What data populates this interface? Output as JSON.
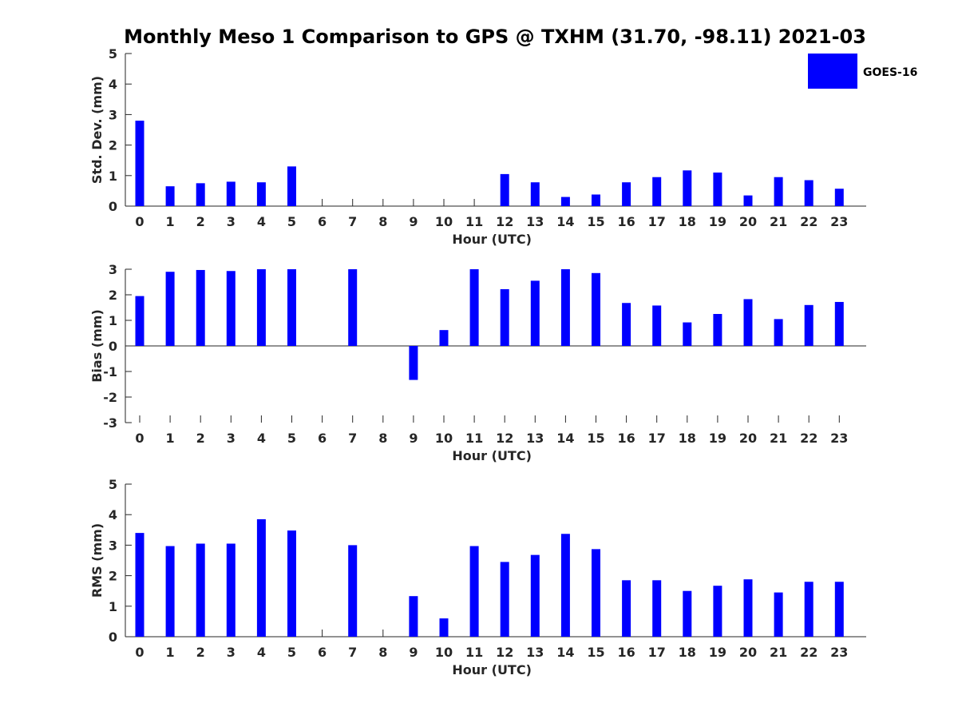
{
  "title": "Monthly Meso 1 Comparison to GPS @ TXHM (31.70, -98.11) 2021-03",
  "legend": {
    "label": "GOES-16",
    "color": "#0000ff",
    "position": "top-right"
  },
  "chart_data": [
    {
      "type": "bar",
      "xlabel": "Hour (UTC)",
      "ylabel": "Std. Dev. (mm)",
      "ylim": [
        0,
        5
      ],
      "yticks": [
        0,
        1,
        2,
        3,
        4,
        5
      ],
      "categories": [
        0,
        1,
        2,
        3,
        4,
        5,
        6,
        7,
        8,
        9,
        10,
        11,
        12,
        13,
        14,
        15,
        16,
        17,
        18,
        19,
        20,
        21,
        22,
        23
      ],
      "series": [
        {
          "name": "GOES-16",
          "values": [
            2.8,
            0.65,
            0.75,
            0.8,
            0.78,
            1.3,
            null,
            null,
            null,
            null,
            null,
            null,
            1.05,
            0.78,
            0.3,
            0.38,
            0.78,
            0.95,
            1.17,
            1.1,
            0.35,
            0.95,
            0.85,
            0.57
          ]
        }
      ]
    },
    {
      "type": "bar",
      "xlabel": "Hour (UTC)",
      "ylabel": "Bias (mm)",
      "ylim": [
        -3,
        3
      ],
      "yticks": [
        -3,
        -2,
        -1,
        0,
        1,
        2,
        3
      ],
      "categories": [
        0,
        1,
        2,
        3,
        4,
        5,
        6,
        7,
        8,
        9,
        10,
        11,
        12,
        13,
        14,
        15,
        16,
        17,
        18,
        19,
        20,
        21,
        22,
        23
      ],
      "series": [
        {
          "name": "GOES-16",
          "values": [
            1.95,
            2.9,
            2.97,
            2.93,
            3.0,
            3.0,
            null,
            3.0,
            null,
            -1.33,
            0.62,
            3.0,
            2.22,
            2.55,
            3.0,
            2.85,
            1.68,
            1.58,
            0.92,
            1.25,
            1.83,
            1.05,
            1.6,
            1.72
          ]
        }
      ]
    },
    {
      "type": "bar",
      "xlabel": "Hour (UTC)",
      "ylabel": "RMS (mm)",
      "ylim": [
        0,
        5
      ],
      "yticks": [
        0,
        1,
        2,
        3,
        4,
        5
      ],
      "categories": [
        0,
        1,
        2,
        3,
        4,
        5,
        6,
        7,
        8,
        9,
        10,
        11,
        12,
        13,
        14,
        15,
        16,
        17,
        18,
        19,
        20,
        21,
        22,
        23
      ],
      "series": [
        {
          "name": "GOES-16",
          "values": [
            3.4,
            2.97,
            3.05,
            3.05,
            3.85,
            3.48,
            null,
            3.0,
            null,
            1.33,
            0.6,
            2.97,
            2.45,
            2.68,
            3.37,
            2.87,
            1.85,
            1.85,
            1.5,
            1.67,
            1.88,
            1.45,
            1.8,
            1.8
          ]
        }
      ]
    }
  ]
}
